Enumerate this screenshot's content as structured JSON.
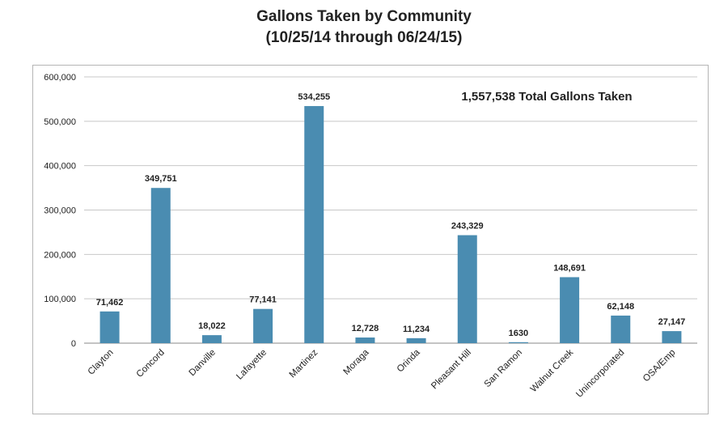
{
  "chart_data": {
    "type": "bar",
    "title": "Gallons Taken by Community",
    "subtitle": "(10/25/14 through 06/24/15)",
    "annotation": "1,557,538 Total Gallons Taken",
    "categories": [
      "Clayton",
      "Concord",
      "Danville",
      "Lafayette",
      "Martinez",
      "Moraga",
      "Orinda",
      "Pleasant Hill",
      "San Ramon",
      "Walnut Creek",
      "Unincorporated",
      "OSA/Emp"
    ],
    "values": [
      71462,
      349751,
      18022,
      77141,
      534255,
      12728,
      11234,
      243329,
      1630,
      148691,
      62148,
      27147
    ],
    "data_labels": [
      "71,462",
      "349,751",
      "18,022",
      "77,141",
      "534,255",
      "12,728",
      "11,234",
      "243,329",
      "1630",
      "148,691",
      "62,148",
      "27,147"
    ],
    "y_ticks": [
      "0",
      "100,000",
      "200,000",
      "300,000",
      "400,000",
      "500,000",
      "600,000"
    ],
    "ylim": [
      0,
      600000
    ],
    "grid": true,
    "bar_color": "#4a8cb1",
    "xlabel": "",
    "ylabel": ""
  }
}
